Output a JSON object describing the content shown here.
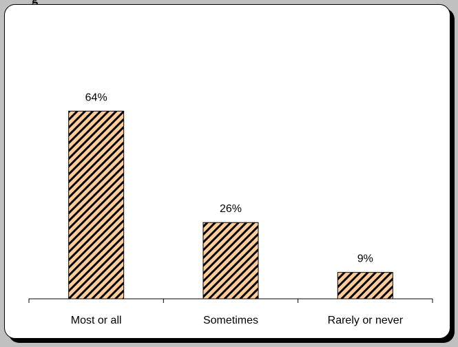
{
  "header_fragment": "g",
  "chart_data": {
    "type": "bar",
    "title": "",
    "xlabel": "",
    "ylabel": "",
    "categories": [
      "Most or all",
      "Sometimes",
      "Rarely or never"
    ],
    "values": [
      64,
      26,
      9
    ],
    "value_labels": [
      "64%",
      "26%",
      "9%"
    ],
    "ylim": [
      0,
      100
    ],
    "grid": false,
    "legend": "none",
    "colors": {
      "bar_fill": "#ffcc99",
      "hatch": "#000000",
      "border": "#000000",
      "shadow": "#000000",
      "background": "#c0c0c0"
    }
  }
}
